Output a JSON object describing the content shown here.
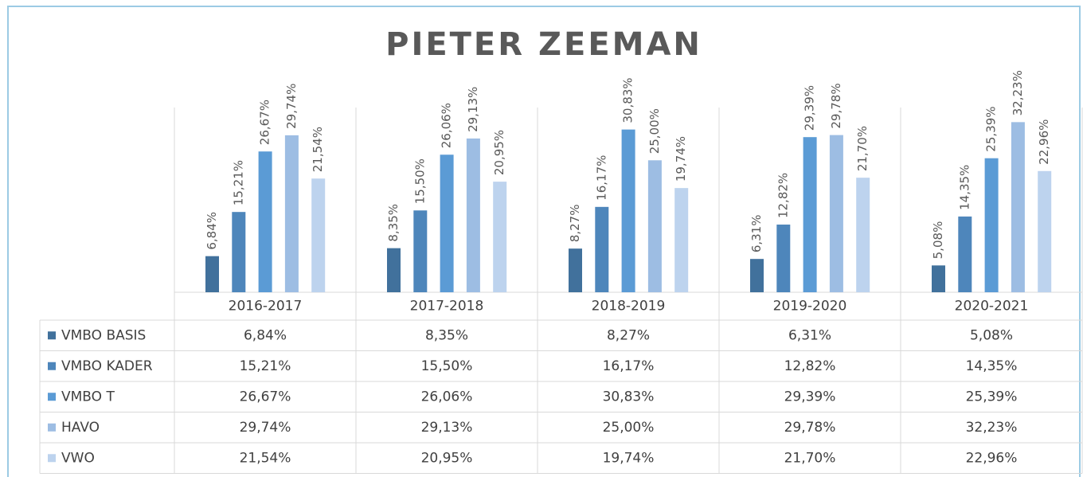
{
  "chart_data": {
    "type": "bar",
    "title": "PIETER ZEEMAN",
    "categories": [
      "2016-2017",
      "2017-2018",
      "2018-2019",
      "2019-2020",
      "2020-2021"
    ],
    "ylim": [
      0,
      35
    ],
    "series": [
      {
        "name": "VMBO BASIS",
        "color": "#41719c",
        "values": [
          6.84,
          8.35,
          8.27,
          6.31,
          5.08
        ],
        "value_labels": [
          "6,84%",
          "8,35%",
          "8,27%",
          "6,31%",
          "5,08%"
        ]
      },
      {
        "name": "VMBO KADER",
        "color": "#4e86bb",
        "values": [
          15.21,
          15.5,
          16.17,
          12.82,
          14.35
        ],
        "value_labels": [
          "15,21%",
          "15,50%",
          "16,17%",
          "12,82%",
          "14,35%"
        ]
      },
      {
        "name": "VMBO T",
        "color": "#5b9bd5",
        "values": [
          26.67,
          26.06,
          30.83,
          29.39,
          25.39
        ],
        "value_labels": [
          "26,67%",
          "26,06%",
          "30,83%",
          "29,39%",
          "25,39%"
        ]
      },
      {
        "name": "HAVO",
        "color": "#9dbde3",
        "values": [
          29.74,
          29.13,
          25.0,
          29.78,
          32.23
        ],
        "value_labels": [
          "29,74%",
          "29,13%",
          "25,00%",
          "29,78%",
          "32,23%"
        ]
      },
      {
        "name": "VWO",
        "color": "#bdd3ee",
        "values": [
          21.54,
          20.95,
          19.74,
          21.7,
          22.96
        ],
        "value_labels": [
          "21,54%",
          "20,95%",
          "19,74%",
          "21,70%",
          "22,96%"
        ]
      }
    ]
  }
}
